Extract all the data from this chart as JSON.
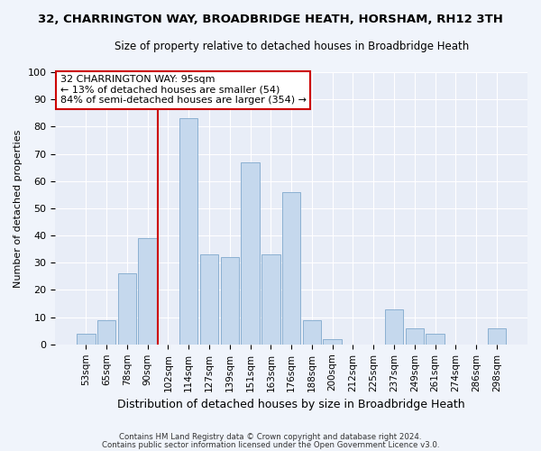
{
  "title": "32, CHARRINGTON WAY, BROADBRIDGE HEATH, HORSHAM, RH12 3TH",
  "subtitle": "Size of property relative to detached houses in Broadbridge Heath",
  "xlabel": "Distribution of detached houses by size in Broadbridge Heath",
  "ylabel": "Number of detached properties",
  "bar_labels": [
    "53sqm",
    "65sqm",
    "78sqm",
    "90sqm",
    "102sqm",
    "114sqm",
    "127sqm",
    "139sqm",
    "151sqm",
    "163sqm",
    "176sqm",
    "188sqm",
    "200sqm",
    "212sqm",
    "225sqm",
    "237sqm",
    "249sqm",
    "261sqm",
    "274sqm",
    "286sqm",
    "298sqm"
  ],
  "bar_values": [
    4,
    9,
    26,
    39,
    0,
    83,
    33,
    32,
    67,
    33,
    56,
    9,
    2,
    0,
    0,
    13,
    6,
    4,
    0,
    0,
    6
  ],
  "bar_color": "#c5d8ed",
  "bar_edge_color": "#7fa8cc",
  "vline_color": "#cc0000",
  "annotation_text": "32 CHARRINGTON WAY: 95sqm\n← 13% of detached houses are smaller (54)\n84% of semi-detached houses are larger (354) →",
  "annotation_box_color": "#ffffff",
  "annotation_box_edge": "#cc0000",
  "ylim": [
    0,
    100
  ],
  "yticks": [
    0,
    10,
    20,
    30,
    40,
    50,
    60,
    70,
    80,
    90,
    100
  ],
  "footnote1": "Contains HM Land Registry data © Crown copyright and database right 2024.",
  "footnote2": "Contains public sector information licensed under the Open Government Licence v3.0.",
  "bg_color": "#f0f4fb",
  "plot_bg_color": "#e8edf7",
  "grid_color": "#ffffff"
}
